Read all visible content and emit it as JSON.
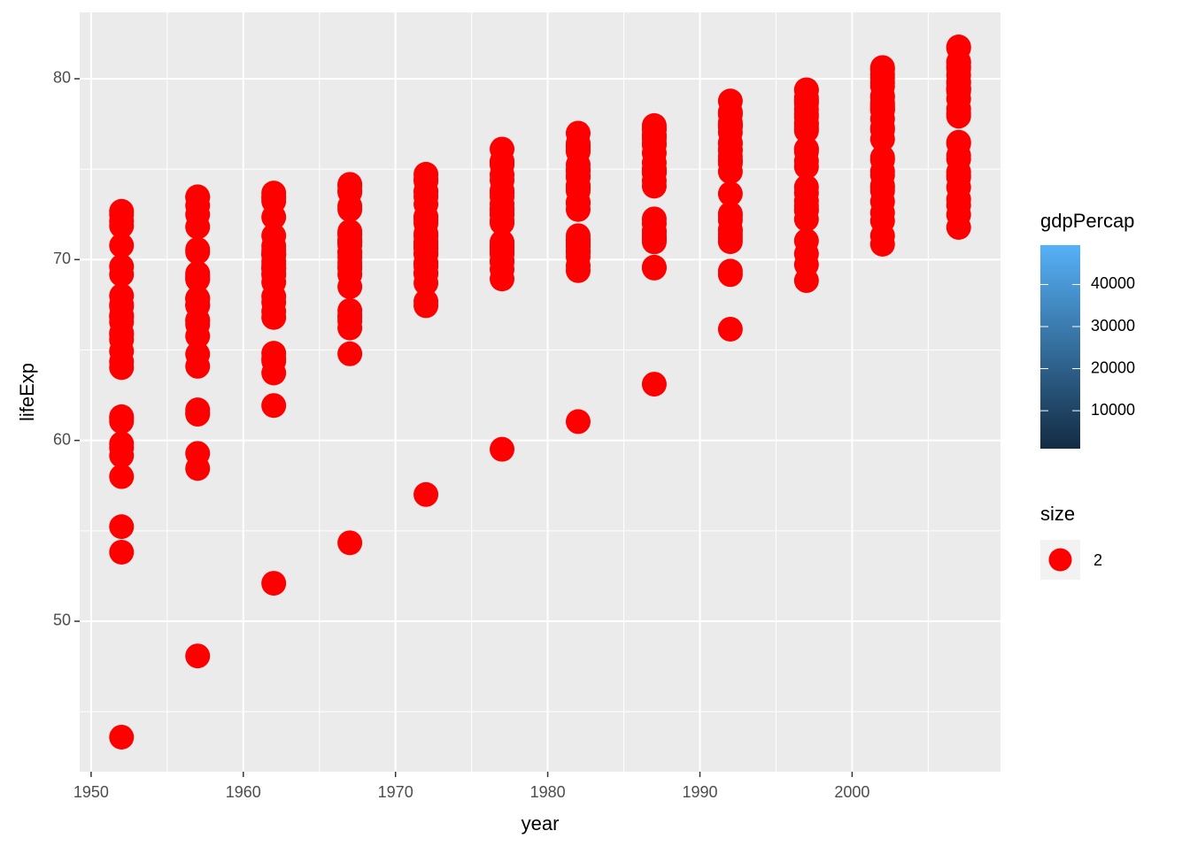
{
  "chart_data": {
    "type": "scatter",
    "x_label": "year",
    "y_label": "lifeExp",
    "xlim": [
      1949.25,
      2009.75
    ],
    "xticks": [
      1950,
      1960,
      1970,
      1980,
      1990,
      2000
    ],
    "xminor_ticks": [
      1955,
      1965,
      1975,
      1985,
      1995,
      2005
    ],
    "ylim": [
      41.68,
      83.67
    ],
    "yticks": [
      50,
      60,
      70,
      80
    ],
    "yminor_ticks": [
      45,
      55,
      65,
      75
    ],
    "grid": true,
    "x": [
      1952,
      1952,
      1952,
      1952,
      1952,
      1952,
      1952,
      1952,
      1952,
      1952,
      1952,
      1952,
      1952,
      1952,
      1952,
      1952,
      1952,
      1952,
      1952,
      1952,
      1952,
      1952,
      1952,
      1952,
      1952,
      1952,
      1952,
      1952,
      1952,
      1952,
      1957,
      1957,
      1957,
      1957,
      1957,
      1957,
      1957,
      1957,
      1957,
      1957,
      1957,
      1957,
      1957,
      1957,
      1957,
      1957,
      1957,
      1957,
      1957,
      1957,
      1957,
      1957,
      1957,
      1957,
      1957,
      1957,
      1957,
      1957,
      1957,
      1957,
      1962,
      1962,
      1962,
      1962,
      1962,
      1962,
      1962,
      1962,
      1962,
      1962,
      1962,
      1962,
      1962,
      1962,
      1962,
      1962,
      1962,
      1962,
      1962,
      1962,
      1962,
      1962,
      1962,
      1962,
      1962,
      1962,
      1962,
      1962,
      1962,
      1962,
      1967,
      1967,
      1967,
      1967,
      1967,
      1967,
      1967,
      1967,
      1967,
      1967,
      1967,
      1967,
      1967,
      1967,
      1967,
      1967,
      1967,
      1967,
      1967,
      1967,
      1967,
      1967,
      1967,
      1967,
      1967,
      1967,
      1967,
      1967,
      1967,
      1967,
      1972,
      1972,
      1972,
      1972,
      1972,
      1972,
      1972,
      1972,
      1972,
      1972,
      1972,
      1972,
      1972,
      1972,
      1972,
      1972,
      1972,
      1972,
      1972,
      1972,
      1972,
      1972,
      1972,
      1972,
      1972,
      1972,
      1972,
      1972,
      1972,
      1972,
      1977,
      1977,
      1977,
      1977,
      1977,
      1977,
      1977,
      1977,
      1977,
      1977,
      1977,
      1977,
      1977,
      1977,
      1977,
      1977,
      1977,
      1977,
      1977,
      1977,
      1977,
      1977,
      1977,
      1977,
      1977,
      1977,
      1977,
      1977,
      1977,
      1977,
      1982,
      1982,
      1982,
      1982,
      1982,
      1982,
      1982,
      1982,
      1982,
      1982,
      1982,
      1982,
      1982,
      1982,
      1982,
      1982,
      1982,
      1982,
      1982,
      1982,
      1982,
      1982,
      1982,
      1982,
      1982,
      1982,
      1982,
      1982,
      1982,
      1982,
      1987,
      1987,
      1987,
      1987,
      1987,
      1987,
      1987,
      1987,
      1987,
      1987,
      1987,
      1987,
      1987,
      1987,
      1987,
      1987,
      1987,
      1987,
      1987,
      1987,
      1987,
      1987,
      1987,
      1987,
      1987,
      1987,
      1987,
      1987,
      1987,
      1987,
      1992,
      1992,
      1992,
      1992,
      1992,
      1992,
      1992,
      1992,
      1992,
      1992,
      1992,
      1992,
      1992,
      1992,
      1992,
      1992,
      1992,
      1992,
      1992,
      1992,
      1992,
      1992,
      1992,
      1992,
      1992,
      1992,
      1992,
      1992,
      1992,
      1992,
      1997,
      1997,
      1997,
      1997,
      1997,
      1997,
      1997,
      1997,
      1997,
      1997,
      1997,
      1997,
      1997,
      1997,
      1997,
      1997,
      1997,
      1997,
      1997,
      1997,
      1997,
      1997,
      1997,
      1997,
      1997,
      1997,
      1997,
      1997,
      1997,
      1997,
      2002,
      2002,
      2002,
      2002,
      2002,
      2002,
      2002,
      2002,
      2002,
      2002,
      2002,
      2002,
      2002,
      2002,
      2002,
      2002,
      2002,
      2002,
      2002,
      2002,
      2002,
      2002,
      2002,
      2002,
      2002,
      2002,
      2002,
      2002,
      2002,
      2002,
      2007,
      2007,
      2007,
      2007,
      2007,
      2007,
      2007,
      2007,
      2007,
      2007,
      2007,
      2007,
      2007,
      2007,
      2007,
      2007,
      2007,
      2007,
      2007,
      2007,
      2007,
      2007,
      2007,
      2007,
      2007,
      2007,
      2007,
      2007,
      2007,
      2007
    ],
    "series": [
      {
        "name": "2",
        "color": "#FF0000",
        "values": [
          55.23,
          66.8,
          68.0,
          53.82,
          59.6,
          61.21,
          66.87,
          70.78,
          66.55,
          67.41,
          67.5,
          65.86,
          64.03,
          72.49,
          66.91,
          65.94,
          59.16,
          72.13,
          72.67,
          61.31,
          59.82,
          61.05,
          58.0,
          64.36,
          65.57,
          64.94,
          71.86,
          69.62,
          43.59,
          69.18,
          59.28,
          67.48,
          69.24,
          58.45,
          66.61,
          64.77,
          69.03,
          71.81,
          67.49,
          68.93,
          69.1,
          67.86,
          66.41,
          73.47,
          68.9,
          67.81,
          61.45,
          72.99,
          73.44,
          65.77,
          61.51,
          64.1,
          61.69,
          67.45,
          67.85,
          66.66,
          72.49,
          70.56,
          48.08,
          70.42,
          64.82,
          69.54,
          70.25,
          61.93,
          69.51,
          67.13,
          69.9,
          72.35,
          68.75,
          70.51,
          70.3,
          69.51,
          67.96,
          73.68,
          70.29,
          69.24,
          63.73,
          73.23,
          73.47,
          67.64,
          64.39,
          66.8,
          64.53,
          70.33,
          69.15,
          69.69,
          73.37,
          71.32,
          52.1,
          70.76,
          66.22,
          70.14,
          70.94,
          64.79,
          70.42,
          68.5,
          70.38,
          72.96,
          69.83,
          71.55,
          70.8,
          71.0,
          69.5,
          73.73,
          71.08,
          71.06,
          67.18,
          73.82,
          74.08,
          69.61,
          66.6,
          66.8,
          66.91,
          70.98,
          69.18,
          71.44,
          74.16,
          72.77,
          54.34,
          71.36,
          67.69,
          70.63,
          71.44,
          67.45,
          70.9,
          69.61,
          70.29,
          73.47,
          70.87,
          72.38,
          71.0,
          72.34,
          69.76,
          74.46,
          71.28,
          72.19,
          70.64,
          73.75,
          74.34,
          70.85,
          69.26,
          69.21,
          68.7,
          70.35,
          69.82,
          73.06,
          74.72,
          73.78,
          57.01,
          72.01,
          68.93,
          72.17,
          72.8,
          69.86,
          70.81,
          70.64,
          70.71,
          74.69,
          72.52,
          73.83,
          72.5,
          73.68,
          69.95,
          76.11,
          72.03,
          73.48,
          73.07,
          75.24,
          75.37,
          70.67,
          70.41,
          69.46,
          70.3,
          70.45,
          70.97,
          74.39,
          75.44,
          75.39,
          59.51,
          72.76,
          70.42,
          73.18,
          73.93,
          70.69,
          71.08,
          70.46,
          70.96,
          74.63,
          74.55,
          74.89,
          73.8,
          75.24,
          69.39,
          76.99,
          73.1,
          74.98,
          74.1,
          76.05,
          75.97,
          71.32,
          72.77,
          69.66,
          70.16,
          70.8,
          71.06,
          76.3,
          76.42,
          76.21,
          61.04,
          74.04,
          72.0,
          74.94,
          75.35,
          71.14,
          71.34,
          71.52,
          71.58,
          74.8,
          74.83,
          76.34,
          74.85,
          76.67,
          69.58,
          77.23,
          74.36,
          76.42,
          74.87,
          76.83,
          75.89,
          70.98,
          74.06,
          69.53,
          71.22,
          71.08,
          72.25,
          76.9,
          77.19,
          77.41,
          63.11,
          75.01,
          71.58,
          76.04,
          76.46,
          72.18,
          71.19,
          72.53,
          72.4,
          75.33,
          75.7,
          77.46,
          76.07,
          77.03,
          69.17,
          78.77,
          75.47,
          77.44,
          75.44,
          77.42,
          77.32,
          70.99,
          74.86,
          69.36,
          71.66,
          71.38,
          73.64,
          77.57,
          78.16,
          78.03,
          66.15,
          76.42,
          72.95,
          77.51,
          77.53,
          73.24,
          70.32,
          73.68,
          74.01,
          76.11,
          77.13,
          78.64,
          77.34,
          77.87,
          71.04,
          78.95,
          76.12,
          78.82,
          75.45,
          78.03,
          78.32,
          72.75,
          75.97,
          69.72,
          72.23,
          72.71,
          75.13,
          78.77,
          79.39,
          79.37,
          68.84,
          77.22,
          75.65,
          78.98,
          78.32,
          74.09,
          72.14,
          74.88,
          75.51,
          77.18,
          78.37,
          79.59,
          78.67,
          78.26,
          72.59,
          80.5,
          77.78,
          80.24,
          73.98,
          78.53,
          79.05,
          74.67,
          77.29,
          71.32,
          73.21,
          73.8,
          76.66,
          79.78,
          80.04,
          80.62,
          70.85,
          78.47,
          76.42,
          79.83,
          79.44,
          74.85,
          73.01,
          75.75,
          76.49,
          78.33,
          79.31,
          80.66,
          79.41,
          79.48,
          73.34,
          81.76,
          78.89,
          80.55,
          74.54,
          79.76,
          80.2,
          75.56,
          78.1,
          72.48,
          74.0,
          74.66,
          77.93,
          80.94,
          80.88,
          81.7,
          71.78,
          79.43
        ]
      }
    ],
    "size_legend_title": "size",
    "color_legend": {
      "title": "gdpPercap",
      "lim": [
        973.5,
        49357
      ],
      "ticks": [
        10000,
        20000,
        30000,
        40000
      ],
      "colors": [
        "#132B43",
        "#56B1F7"
      ]
    }
  }
}
